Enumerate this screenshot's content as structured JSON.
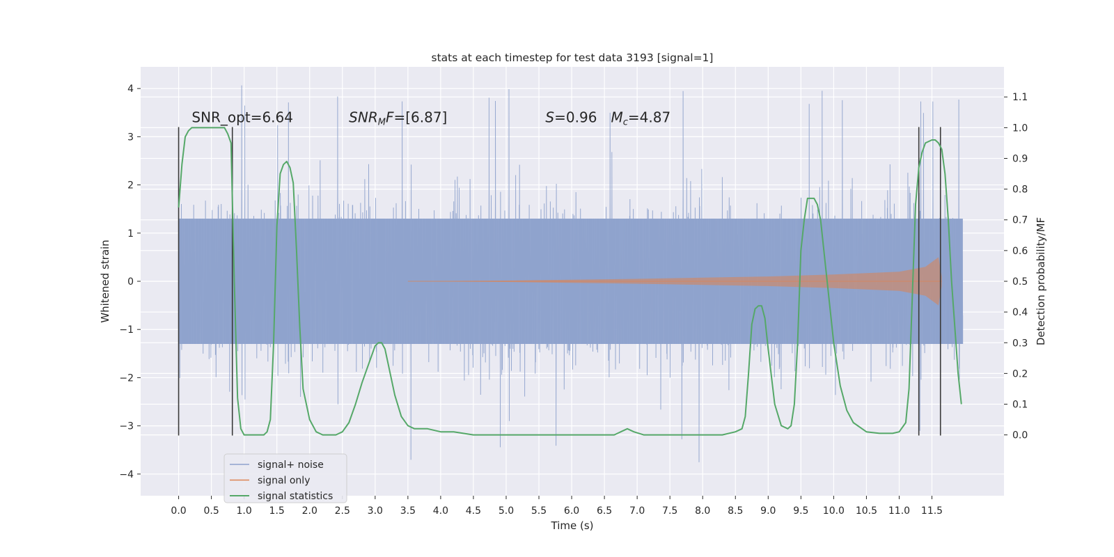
{
  "chart_data": {
    "type": "line",
    "title": "stats at each timestep for test data 3193 [signal=1]",
    "xlabel": "Time (s)",
    "ylabel": "Whitened strain",
    "ylabel_right": "Detection probability/MF",
    "xlim": [
      -0.58,
      12.6
    ],
    "ylim": [
      -4.45,
      4.45
    ],
    "ylim_right": [
      -0.198,
      1.198
    ],
    "x_ticks": [
      "0.0",
      "0.5",
      "1.0",
      "1.5",
      "2.0",
      "2.5",
      "3.0",
      "3.5",
      "4.0",
      "4.5",
      "5.0",
      "5.5",
      "6.0",
      "6.5",
      "7.0",
      "7.5",
      "8.0",
      "8.5",
      "9.0",
      "9.5",
      "10.0",
      "10.5",
      "11.0",
      "11.5"
    ],
    "y_ticks": [
      "4",
      "3",
      "2",
      "1",
      "0",
      "−1",
      "−2",
      "−3",
      "−4"
    ],
    "y_right_ticks": [
      "1.1",
      "1.0",
      "0.9",
      "0.8",
      "0.7",
      "0.6",
      "0.5",
      "0.4",
      "0.3",
      "0.2",
      "0.1",
      "0.0"
    ],
    "grid": true,
    "legend_position": "lower-left",
    "annotations": [
      {
        "text": "SNR_opt=6.64",
        "x": 0.2,
        "y": 3.3
      },
      {
        "html": "<tspan font-style='italic'>SNR</tspan><tspan font-style='italic' font-size='13' dy='4'>M</tspan><tspan font-style='italic' dy='-4'>F</tspan>=[6.87]",
        "x": 2.6,
        "y": 3.3
      },
      {
        "html": "<tspan font-style='italic'>S</tspan>=0.96",
        "x": 5.6,
        "y": 3.3
      },
      {
        "html": "<tspan font-style='italic'>M</tspan><tspan font-style='italic' font-size='13' dy='4'>c</tspan><tspan dy='-4'>=4.87</tspan>",
        "x": 6.6,
        "y": 3.3
      }
    ],
    "vertical_markers": [
      0.0,
      0.82,
      11.3,
      11.63
    ],
    "series": [
      {
        "name": "signal+ noise",
        "color": "#8ea2cc",
        "style": "noise band, amplitude roughly ±2 with spikes up to about ±4"
      },
      {
        "name": "signal only",
        "color": "#dd8452",
        "envelope": {
          "x": [
            3.5,
            5.0,
            7.0,
            9.0,
            10.0,
            11.0,
            11.4,
            11.6,
            11.65
          ],
          "amplitude": [
            0.0,
            0.015,
            0.05,
            0.1,
            0.14,
            0.2,
            0.3,
            0.5,
            0.1
          ]
        }
      },
      {
        "name": "signal statistics",
        "color": "#55a868",
        "axis": "right",
        "x": [
          0.0,
          0.05,
          0.1,
          0.15,
          0.2,
          0.3,
          0.4,
          0.5,
          0.6,
          0.7,
          0.75,
          0.8,
          0.85,
          0.9,
          0.95,
          1.0,
          1.1,
          1.2,
          1.3,
          1.35,
          1.4,
          1.45,
          1.5,
          1.55,
          1.6,
          1.65,
          1.7,
          1.75,
          1.8,
          1.85,
          1.9,
          2.0,
          2.1,
          2.2,
          2.3,
          2.4,
          2.5,
          2.6,
          2.7,
          2.8,
          2.9,
          3.0,
          3.05,
          3.1,
          3.15,
          3.2,
          3.3,
          3.4,
          3.5,
          3.6,
          3.8,
          4.0,
          4.2,
          4.5,
          5.0,
          5.5,
          6.0,
          6.3,
          6.5,
          6.65,
          6.75,
          6.85,
          6.95,
          7.1,
          7.5,
          8.0,
          8.3,
          8.5,
          8.6,
          8.65,
          8.7,
          8.75,
          8.8,
          8.85,
          8.9,
          8.95,
          9.0,
          9.1,
          9.2,
          9.3,
          9.35,
          9.4,
          9.45,
          9.5,
          9.55,
          9.6,
          9.65,
          9.7,
          9.75,
          9.8,
          9.9,
          10.0,
          10.1,
          10.2,
          10.3,
          10.5,
          10.7,
          10.9,
          11.0,
          11.1,
          11.15,
          11.2,
          11.25,
          11.3,
          11.35,
          11.4,
          11.5,
          11.55,
          11.6,
          11.65,
          11.7,
          11.75,
          11.8,
          11.85,
          11.9,
          11.95
        ],
        "y": [
          0.74,
          0.88,
          0.97,
          0.99,
          1.0,
          1.0,
          1.0,
          1.0,
          1.0,
          1.0,
          0.98,
          0.95,
          0.5,
          0.12,
          0.02,
          0.0,
          0.0,
          0.0,
          0.0,
          0.01,
          0.05,
          0.3,
          0.68,
          0.85,
          0.88,
          0.89,
          0.87,
          0.82,
          0.6,
          0.35,
          0.15,
          0.05,
          0.01,
          0.0,
          0.0,
          0.0,
          0.01,
          0.04,
          0.1,
          0.17,
          0.23,
          0.29,
          0.3,
          0.3,
          0.28,
          0.23,
          0.13,
          0.06,
          0.03,
          0.02,
          0.02,
          0.01,
          0.01,
          0.0,
          0.0,
          0.0,
          0.0,
          0.0,
          0.0,
          0.0,
          0.01,
          0.02,
          0.01,
          0.0,
          0.0,
          0.0,
          0.0,
          0.01,
          0.02,
          0.06,
          0.2,
          0.36,
          0.41,
          0.42,
          0.42,
          0.38,
          0.28,
          0.1,
          0.03,
          0.02,
          0.03,
          0.1,
          0.3,
          0.6,
          0.7,
          0.77,
          0.77,
          0.77,
          0.75,
          0.7,
          0.5,
          0.3,
          0.16,
          0.08,
          0.04,
          0.01,
          0.005,
          0.005,
          0.01,
          0.04,
          0.15,
          0.45,
          0.75,
          0.87,
          0.92,
          0.95,
          0.96,
          0.96,
          0.95,
          0.93,
          0.85,
          0.7,
          0.5,
          0.35,
          0.2,
          0.1
        ]
      }
    ]
  }
}
